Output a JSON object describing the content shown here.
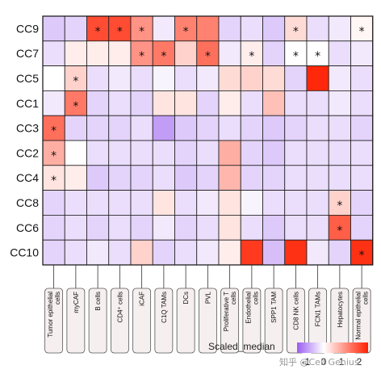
{
  "chart_data": {
    "type": "heatmap",
    "legend_title": "Scaled_median",
    "legend_ticks": [
      "-1",
      "0",
      "1",
      "2"
    ],
    "color_range": [
      -1.5,
      2.5
    ],
    "colors": {
      "low": "#9a5cf0",
      "mid": "#ffffff",
      "high": "#ff1f00"
    },
    "rows": [
      "CC9",
      "CC7",
      "CC5",
      "CC1",
      "CC3",
      "CC2",
      "CC4",
      "CC8",
      "CC6",
      "CC10"
    ],
    "columns": [
      "Tumor epithelial cells",
      "myCAF",
      "B cells",
      "CD4⁺ cells",
      "iCAF",
      "C1Q TAMs",
      "DCs",
      "PVL",
      "Proliferative T cells",
      "Endothelial cells",
      "SPP1 TAM",
      "CD8 NK cells",
      "FCN1 TAMs",
      "Hepatocytes",
      "Normal epithelial cells"
    ],
    "values": [
      [
        -0.5,
        -0.4,
        2.0,
        2.0,
        1.2,
        -0.2,
        1.4,
        1.4,
        -0.4,
        -0.3,
        -0.5,
        0.4,
        -0.3,
        -0.2,
        0.1
      ],
      [
        -0.3,
        0.2,
        0.2,
        0.2,
        1.2,
        1.5,
        0.5,
        1.6,
        -0.2,
        0.2,
        -0.4,
        0.0,
        0.0,
        -0.3,
        -0.2
      ],
      [
        0.0,
        0.5,
        -0.3,
        -0.2,
        -0.3,
        -0.1,
        -0.3,
        -0.2,
        0.4,
        0.5,
        0.4,
        -0.4,
        2.4,
        -0.2,
        -0.3
      ],
      [
        -0.2,
        1.5,
        -0.4,
        -0.3,
        -0.4,
        0.3,
        0.3,
        -0.4,
        0.2,
        -0.3,
        0.7,
        -0.3,
        -0.3,
        -0.2,
        -0.3
      ],
      [
        1.6,
        -0.4,
        -0.4,
        -0.4,
        -0.3,
        -0.9,
        -0.5,
        -0.4,
        -0.3,
        -0.4,
        -0.5,
        -0.4,
        -0.3,
        -0.3,
        -0.4
      ],
      [
        0.9,
        0.0,
        -0.3,
        -0.3,
        -0.3,
        -0.3,
        -0.4,
        -0.3,
        0.9,
        -0.4,
        -0.5,
        -0.3,
        -0.3,
        -0.3,
        -0.3
      ],
      [
        0.3,
        0.2,
        -0.5,
        -0.4,
        -0.4,
        -0.3,
        -0.5,
        -0.4,
        0.8,
        -0.4,
        -0.4,
        -0.3,
        -0.3,
        -0.3,
        -0.3
      ],
      [
        -0.4,
        -0.3,
        -0.3,
        -0.3,
        -0.3,
        0.3,
        -0.3,
        -0.2,
        0.3,
        -0.1,
        -0.3,
        -0.3,
        -0.3,
        0.5,
        -0.4
      ],
      [
        -0.4,
        -0.3,
        -0.4,
        -0.3,
        -0.4,
        -0.2,
        -0.4,
        -0.3,
        0.3,
        -0.3,
        -0.5,
        -0.3,
        -0.3,
        1.8,
        -0.4
      ],
      [
        -0.4,
        -0.3,
        -0.2,
        -0.3,
        0.5,
        -0.4,
        -0.3,
        -0.2,
        0.2,
        2.2,
        -0.6,
        2.3,
        -0.2,
        -0.4,
        2.3
      ]
    ],
    "significance": [
      [
        0,
        0,
        1,
        1,
        1,
        0,
        1,
        0,
        0,
        0,
        0,
        1,
        0,
        0,
        1
      ],
      [
        0,
        0,
        0,
        0,
        1,
        1,
        0,
        1,
        0,
        1,
        0,
        1,
        1,
        0,
        0
      ],
      [
        0,
        1,
        0,
        0,
        0,
        0,
        0,
        0,
        0,
        0,
        0,
        0,
        0,
        0,
        0
      ],
      [
        0,
        1,
        0,
        0,
        0,
        0,
        0,
        0,
        0,
        0,
        0,
        0,
        0,
        0,
        0
      ],
      [
        1,
        0,
        0,
        0,
        0,
        0,
        0,
        0,
        0,
        0,
        0,
        0,
        0,
        0,
        0
      ],
      [
        1,
        0,
        0,
        0,
        0,
        0,
        0,
        0,
        0,
        0,
        0,
        0,
        0,
        0,
        0
      ],
      [
        1,
        0,
        0,
        0,
        0,
        0,
        0,
        0,
        0,
        0,
        0,
        0,
        0,
        0,
        0
      ],
      [
        0,
        0,
        0,
        0,
        0,
        0,
        0,
        0,
        0,
        0,
        0,
        0,
        0,
        1,
        0
      ],
      [
        0,
        0,
        0,
        0,
        0,
        0,
        0,
        0,
        0,
        0,
        0,
        0,
        0,
        1,
        0
      ],
      [
        0,
        0,
        0,
        0,
        0,
        0,
        0,
        0,
        0,
        0,
        0,
        0,
        0,
        0,
        1
      ]
    ],
    "star_symbol": "*",
    "white_stars": [
      [
        1,
        11
      ],
      [
        1,
        12
      ]
    ]
  },
  "watermark": "知乎 @Cell Genius"
}
